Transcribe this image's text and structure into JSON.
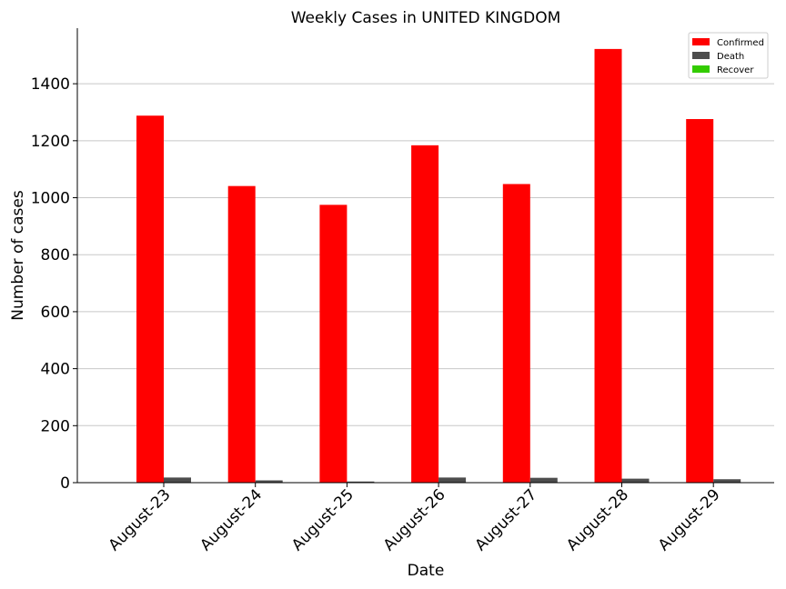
{
  "chart_data": {
    "type": "bar",
    "title": "Weekly Cases in UNITED KINGDOM",
    "xlabel": "Date",
    "ylabel": "Number of cases",
    "categories": [
      "August-23",
      "August-24",
      "August-25",
      "August-26",
      "August-27",
      "August-28",
      "August-29"
    ],
    "series": [
      {
        "name": "Confirmed",
        "color": "#ff0000",
        "values": [
          1288,
          1041,
          975,
          1184,
          1048,
          1522,
          1276
        ]
      },
      {
        "name": "Death",
        "color": "#4d4d4d",
        "values": [
          18,
          8,
          4,
          18,
          17,
          14,
          12
        ]
      },
      {
        "name": "Recover",
        "color": "#33cc00",
        "values": [
          0,
          0,
          0,
          0,
          0,
          0,
          0
        ]
      }
    ],
    "ylim": [
      0,
      1595
    ],
    "yticks": [
      0,
      200,
      400,
      600,
      800,
      1000,
      1200,
      1400
    ],
    "grid": "horizontal",
    "legend": "top-right"
  }
}
